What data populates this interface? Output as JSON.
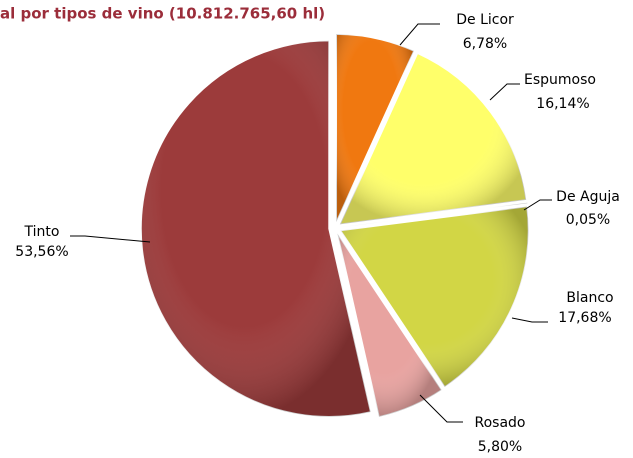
{
  "chart_data": {
    "type": "pie",
    "title": "al por tipos de vino (10.812.765,60 hl)",
    "categories": [
      "De Licor",
      "Espumoso",
      "De Aguja",
      "Blanco",
      "Rosado",
      "Tinto"
    ],
    "values": [
      6.78,
      16.14,
      0.05,
      17.68,
      5.8,
      53.56
    ],
    "value_labels": [
      "6,78%",
      "16,14%",
      "0,05%",
      "17,68%",
      "5,80%",
      "53,56%"
    ],
    "colors": [
      "#f07810",
      "#ffff6a",
      "#f4f49c",
      "#d2d645",
      "#e8a3a0",
      "#9c3b3b"
    ]
  }
}
